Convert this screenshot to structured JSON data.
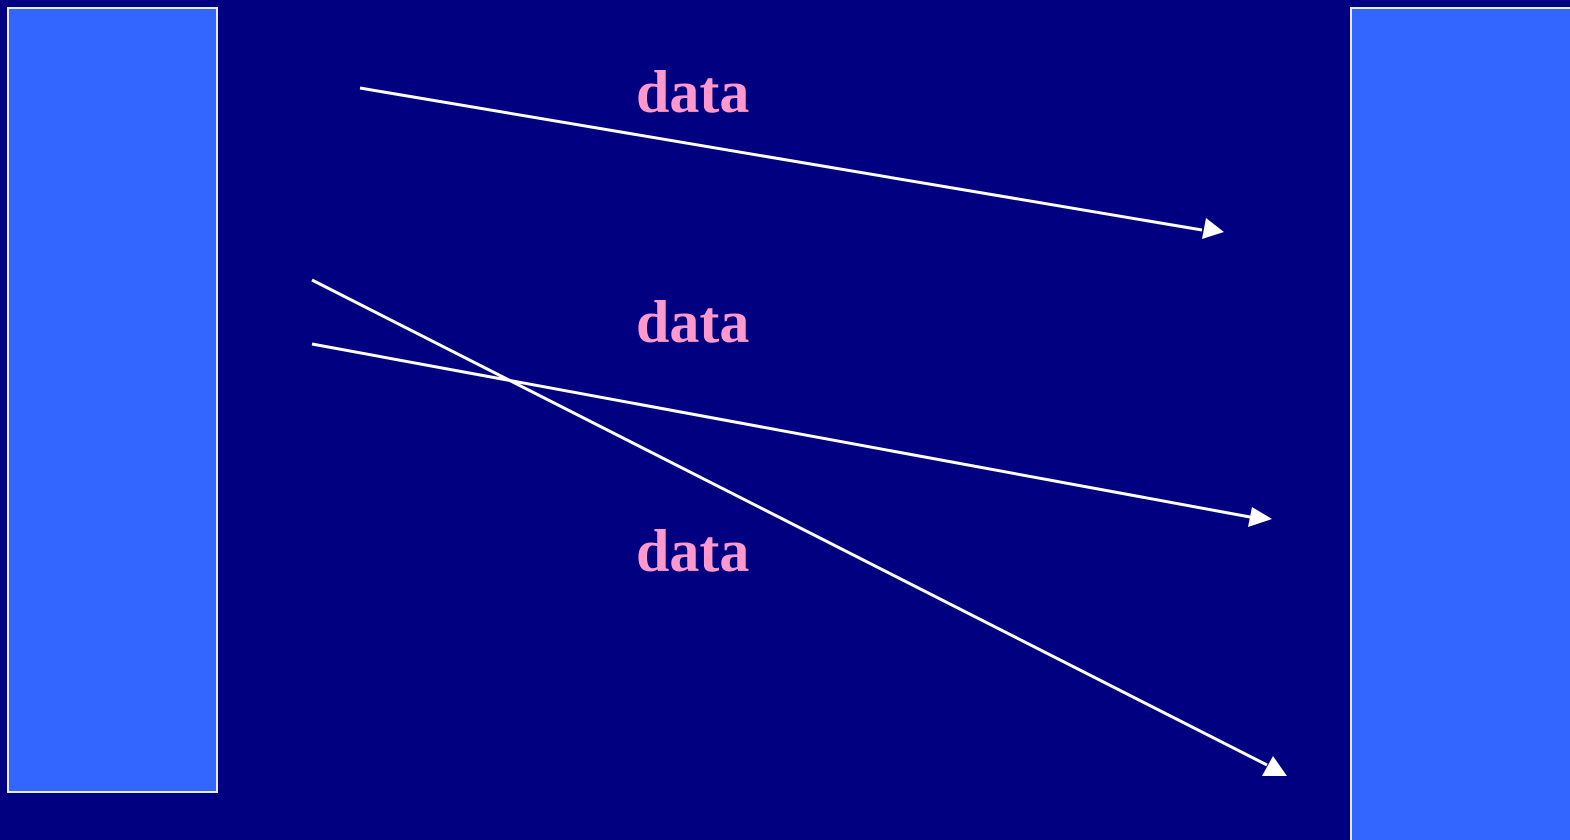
{
  "diagram": {
    "labels": [
      "data",
      "data",
      "data"
    ],
    "arrows": [
      {
        "from": "left-box",
        "to": "right-box"
      },
      {
        "from": "left-box",
        "to": "right-box"
      },
      {
        "from": "left-box",
        "to": "right-box"
      }
    ]
  },
  "colors": {
    "background": "#000080",
    "box_fill": "#3366ff",
    "box_border": "#e6ecff",
    "arrow": "#ffffff",
    "label": "#ff99cc"
  }
}
